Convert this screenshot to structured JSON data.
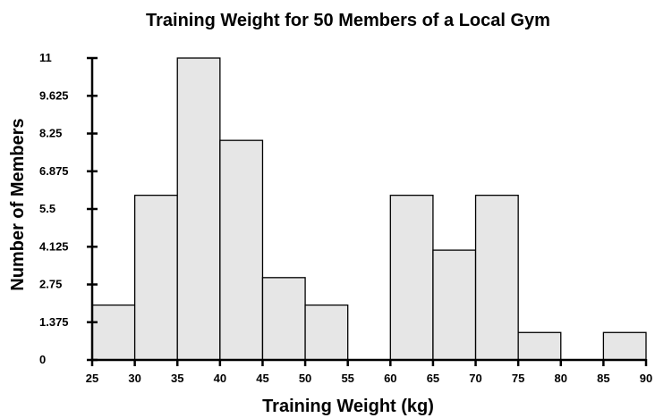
{
  "chart_data": {
    "type": "bar",
    "title": "Training Weight for 50 Members of a Local Gym",
    "xlabel": "Training Weight (kg)",
    "ylabel": "Number of Members",
    "bin_edges": [
      25,
      30,
      35,
      40,
      45,
      50,
      55,
      60,
      65,
      70,
      75,
      80,
      85,
      90
    ],
    "x_ticks": [
      "25",
      "30",
      "35",
      "40",
      "45",
      "50",
      "55",
      "60",
      "65",
      "70",
      "75",
      "80",
      "85",
      "90"
    ],
    "categories": [
      "25-30",
      "30-35",
      "35-40",
      "40-45",
      "45-50",
      "50-55",
      "55-60",
      "60-65",
      "65-70",
      "70-75",
      "75-80",
      "80-85",
      "85-90"
    ],
    "values": [
      2,
      6,
      11,
      8,
      3,
      2,
      0,
      6,
      4,
      6,
      1,
      0,
      1
    ],
    "y_ticks": [
      "0",
      "1.375",
      "2.75",
      "4.125",
      "5.5",
      "6.875",
      "8.25",
      "9.625",
      "11"
    ],
    "xlim": [
      25,
      90
    ],
    "ylim": [
      0,
      11
    ],
    "grid": false,
    "legend": false,
    "bar_color": "#e6e6e6",
    "edge_color": "#000000"
  }
}
